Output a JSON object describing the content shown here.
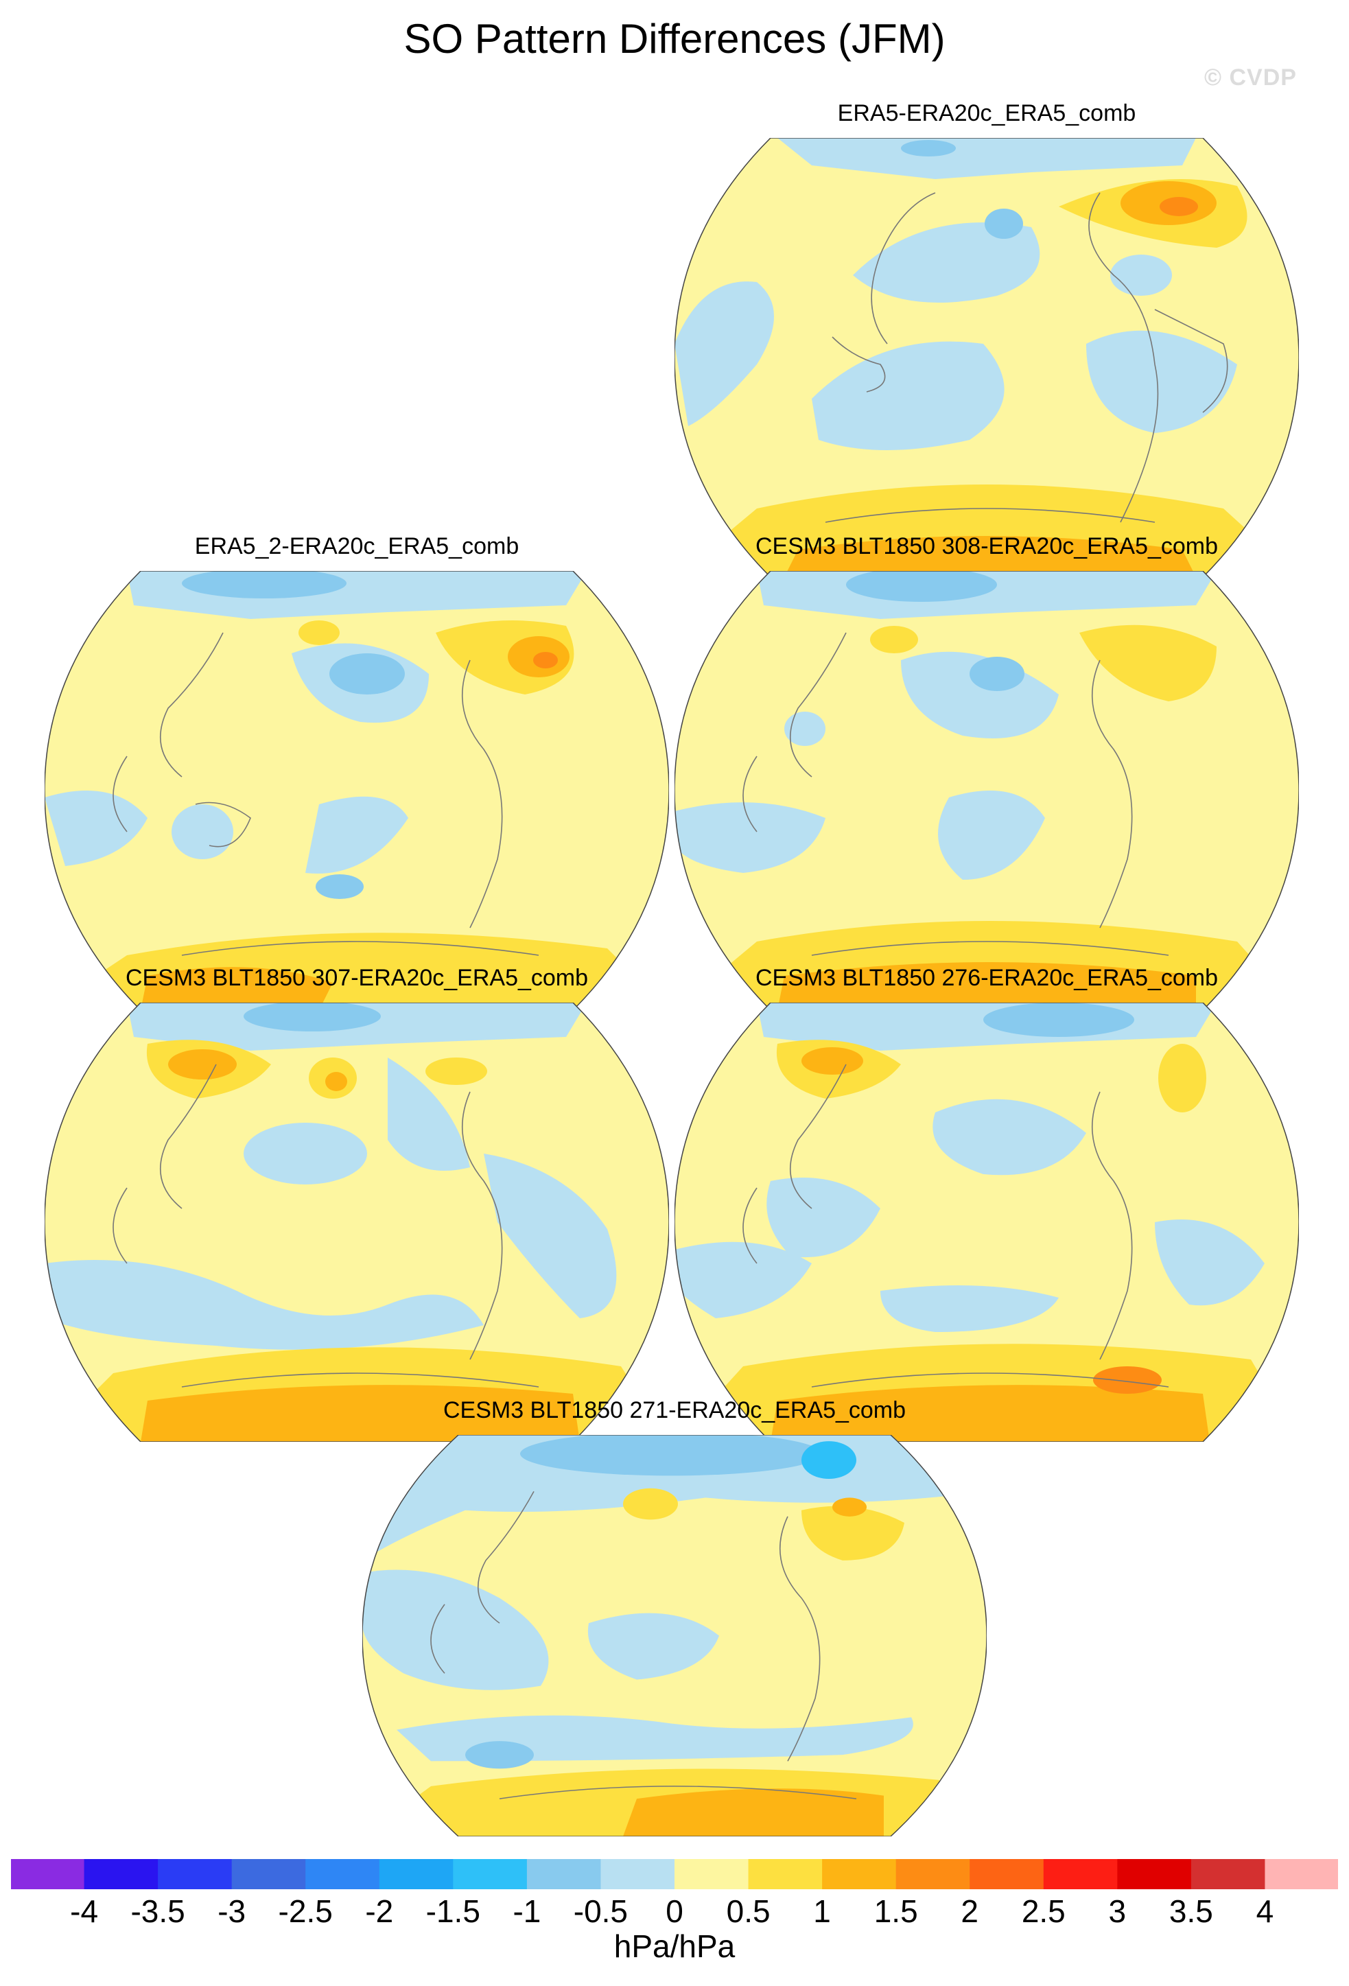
{
  "title": "SO Pattern Differences (JFM)",
  "watermark": "© CVDP",
  "panels": [
    {
      "title": "ERA5-ERA20c_ERA5_comb"
    },
    {
      "title": "ERA5_2-ERA20c_ERA5_comb"
    },
    {
      "title": "CESM3 BLT1850 308-ERA20c_ERA5_comb"
    },
    {
      "title": "CESM3 BLT1850 307-ERA20c_ERA5_comb"
    },
    {
      "title": "CESM3 BLT1850 276-ERA20c_ERA5_comb"
    },
    {
      "title": "CESM3 BLT1850 271-ERA20c_ERA5_comb"
    }
  ],
  "colorbar": {
    "colors": [
      "#8a2be2",
      "#2a14f0",
      "#2a3cf5",
      "#3c6ae0",
      "#2e86f5",
      "#1ea6f5",
      "#2ec0f8",
      "#88caee",
      "#b8e0f2",
      "#fdf6a0",
      "#fde040",
      "#fdb414",
      "#fd8c14",
      "#fd6414",
      "#fd1e14",
      "#e00000",
      "#d43030",
      "#ffb4b4"
    ],
    "labels": [
      "-4",
      "-3.5",
      "-3",
      "-2.5",
      "-2",
      "-1.5",
      "-1",
      "-0.5",
      "0",
      "0.5",
      "1",
      "1.5",
      "2",
      "2.5",
      "3",
      "3.5",
      "4"
    ],
    "units": "hPa/hPa"
  },
  "legend_colors": {
    "strong_neg": "#88caee",
    "weak_neg": "#b8e0f2",
    "weak_pos": "#fdf6a0",
    "mid_pos": "#fde040",
    "strong_pos": "#fdb414",
    "peak_pos": "#fd8c14"
  }
}
